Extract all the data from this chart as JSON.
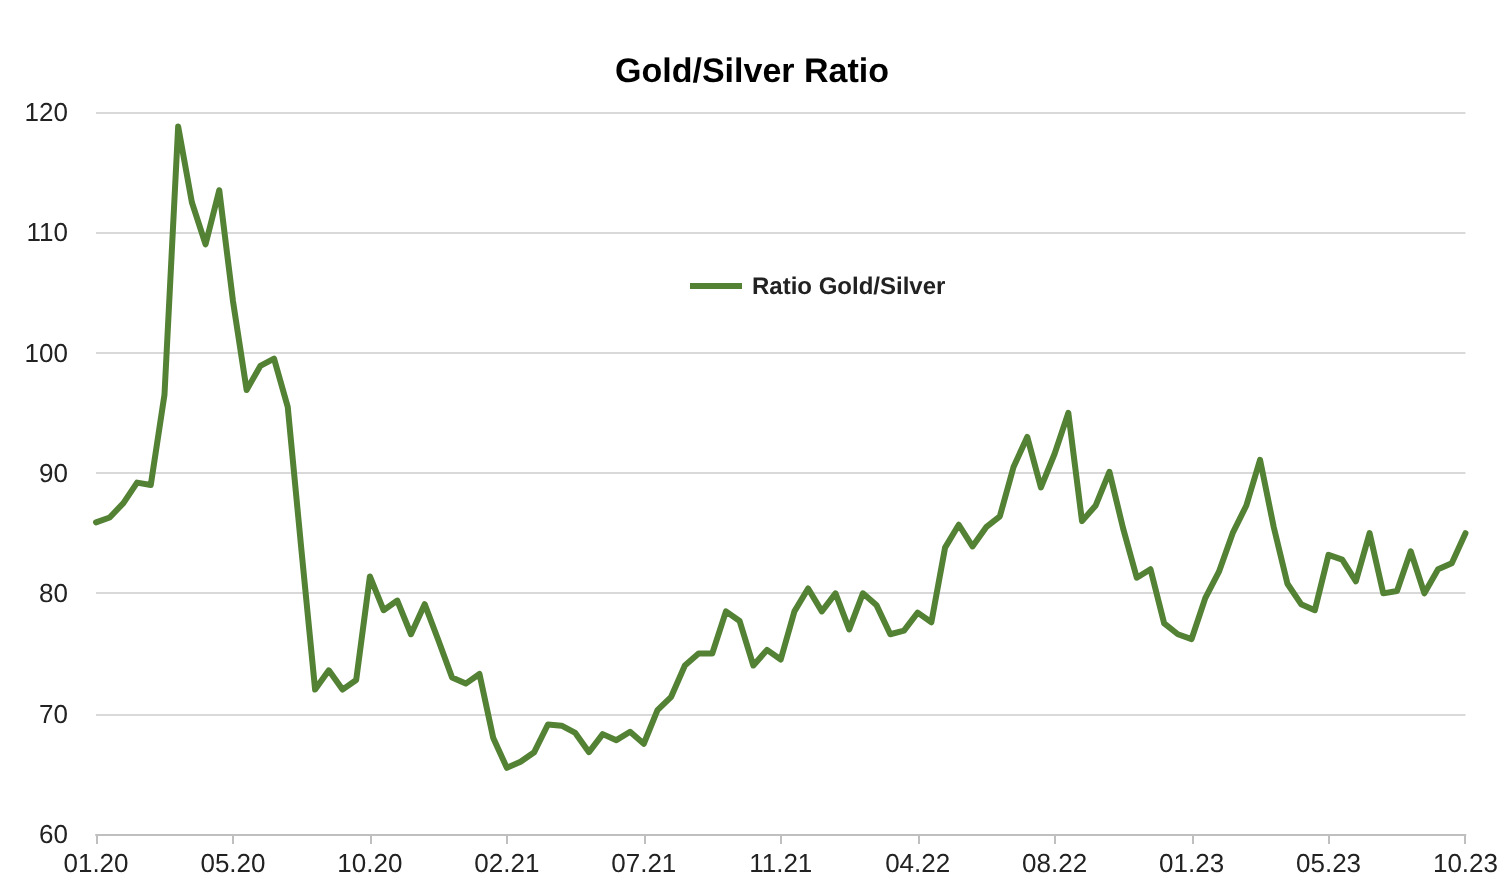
{
  "chart_data": {
    "type": "line",
    "title": "Gold/Silver Ratio",
    "categories": [
      "01.20",
      null,
      null,
      null,
      null,
      null,
      null,
      null,
      null,
      null,
      "05.20",
      null,
      null,
      null,
      null,
      null,
      null,
      null,
      null,
      null,
      "10.20",
      null,
      null,
      null,
      null,
      null,
      null,
      null,
      null,
      null,
      "02.21",
      null,
      null,
      null,
      null,
      null,
      null,
      null,
      null,
      null,
      "07.21",
      null,
      null,
      null,
      null,
      null,
      null,
      null,
      null,
      null,
      "11.21",
      null,
      null,
      null,
      null,
      null,
      null,
      null,
      null,
      null,
      "04.22",
      null,
      null,
      null,
      null,
      null,
      null,
      null,
      null,
      null,
      "08.22",
      null,
      null,
      null,
      null,
      null,
      null,
      null,
      null,
      null,
      "01.23",
      null,
      null,
      null,
      null,
      null,
      null,
      null,
      null,
      null,
      "05.23",
      null,
      null,
      null,
      null,
      null,
      null,
      null,
      null,
      null,
      "10.23"
    ],
    "series": [
      {
        "name": "Ratio Gold/Silver",
        "color": "#548235",
        "values": [
          85.9,
          86.3,
          87.5,
          89.2,
          89.0,
          96.5,
          118.8,
          112.5,
          109,
          113.5,
          104.3,
          96.9,
          98.9,
          99.5,
          95.5,
          83.6,
          72,
          73.6,
          72,
          72.8,
          81.4,
          78.6,
          79.4,
          76.6,
          79.1,
          76.1,
          73,
          72.5,
          73.3,
          68,
          65.5,
          66,
          66.8,
          69.1,
          69,
          68.4,
          66.8,
          68.3,
          67.8,
          68.5,
          67.5,
          70.3,
          71.4,
          74,
          75,
          75,
          78.5,
          77.7,
          74,
          75.3,
          74.5,
          78.5,
          80.4,
          78.5,
          80,
          77,
          80,
          79,
          76.6,
          76.9,
          78.4,
          77.6,
          83.8,
          85.7,
          83.9,
          85.5,
          86.4,
          90.5,
          93,
          88.8,
          91.6,
          95,
          86,
          87.3,
          90.1,
          85.4,
          81.3,
          82,
          77.5,
          76.6,
          76.2,
          79.6,
          81.8,
          85,
          87.3,
          91.1,
          85.5,
          80.8,
          79.1,
          78.6,
          83.2,
          82.8,
          81,
          85,
          80,
          80.2,
          83.5,
          80,
          82,
          82.5,
          85
        ]
      }
    ],
    "ylim": [
      60,
      120
    ],
    "yticks": [
      60,
      70,
      80,
      90,
      100,
      110,
      120
    ],
    "grid": "y",
    "legend": "top",
    "marker": "none",
    "line_style": "solid"
  }
}
